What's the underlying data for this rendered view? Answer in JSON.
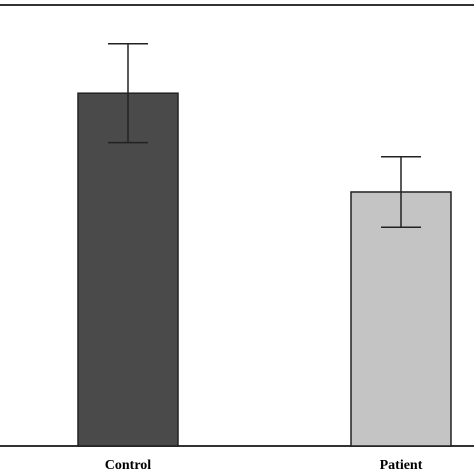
{
  "chart_data": {
    "type": "bar",
    "title": "",
    "xlabel": "",
    "ylabel": "",
    "categories": [
      "Control",
      "Patient"
    ],
    "values": [
      100,
      72
    ],
    "error": [
      14,
      10
    ],
    "ylim": [
      0,
      125
    ],
    "bar_colors": [
      "#4a4a4a",
      "#c4c4c4"
    ],
    "bar_outline": "#222222",
    "axis_color": "#333333",
    "grid": false,
    "legend": false
  }
}
